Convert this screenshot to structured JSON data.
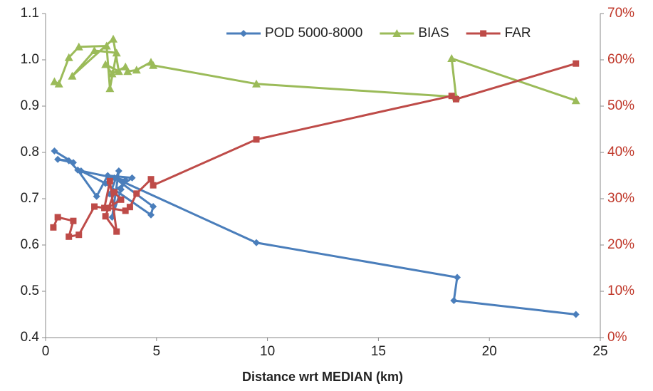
{
  "chart_data": {
    "type": "line",
    "xlabel": "Distance wrt MEDIAN (km)",
    "xlim": [
      0,
      25
    ],
    "xticks": [
      0,
      5,
      10,
      15,
      20,
      25
    ],
    "ylim": [
      0.4,
      1.1
    ],
    "yticks": [
      0.4,
      0.5,
      0.6,
      0.7,
      0.8,
      0.9,
      {
        "value": 1,
        "label": "1.0"
      },
      1.1
    ],
    "y2lim": [
      0,
      70
    ],
    "y2ticks": [
      {
        "value": 0,
        "label": "0%"
      },
      {
        "value": 10,
        "label": "10%"
      },
      {
        "value": 20,
        "label": "20%"
      },
      {
        "value": 30,
        "label": "30%"
      },
      {
        "value": 40,
        "label": "40%"
      },
      {
        "value": 50,
        "label": "50%"
      },
      {
        "value": 60,
        "label": "60%"
      },
      {
        "value": 70,
        "label": "70%"
      }
    ],
    "y2color": "#c0392b",
    "legend": "top",
    "series": [
      {
        "name": "POD 5000-8000",
        "color": "#4a7ebb",
        "marker": "diamond",
        "x": [
          0.4,
          1.25,
          0.55,
          1.05,
          1.45,
          2.3,
          2.8,
          3.9,
          2.9,
          3.3,
          3.0,
          3.4,
          3.6,
          1.6,
          2.7,
          4.75,
          4.85,
          3.1,
          9.5,
          18.55,
          18.4,
          23.9
        ],
        "values": [
          0.803,
          0.778,
          0.785,
          0.782,
          0.762,
          0.705,
          0.75,
          0.745,
          0.71,
          0.76,
          0.66,
          0.72,
          0.74,
          0.76,
          0.733,
          0.665,
          0.683,
          0.745,
          0.605,
          0.53,
          0.48,
          0.45
        ]
      },
      {
        "name": "BIAS",
        "color": "#9bbb59",
        "marker": "triangle",
        "x": [
          0.4,
          0.6,
          1.05,
          1.5,
          2.75,
          2.9,
          3.2,
          2.2,
          1.2,
          3.05,
          3.3,
          2.7,
          3.0,
          3.6,
          3.7,
          4.1,
          4.75,
          4.85,
          9.5,
          18.5,
          18.3,
          23.9
        ],
        "values": [
          0.953,
          0.948,
          1.005,
          1.028,
          1.03,
          0.938,
          1.015,
          1.02,
          0.965,
          1.045,
          0.975,
          0.99,
          0.97,
          0.985,
          0.975,
          0.978,
          0.995,
          0.988,
          0.948,
          0.92,
          1.003,
          0.912
        ]
      },
      {
        "name": "FAR",
        "color": "#be4b48",
        "marker": "square",
        "axis": "y2",
        "x": [
          0.35,
          0.55,
          1.25,
          1.05,
          1.5,
          2.2,
          2.65,
          2.9,
          3.2,
          2.7,
          3.1,
          3.4,
          2.8,
          3.6,
          3.8,
          4.1,
          4.75,
          4.85,
          9.5,
          18.3,
          18.5,
          23.9
        ],
        "values": [
          23.8,
          26,
          25.2,
          21.8,
          22.2,
          28.3,
          28,
          33.8,
          22.9,
          26.2,
          31.4,
          29.8,
          28,
          27.4,
          28.2,
          31.1,
          34.2,
          32.9,
          42.8,
          52.2,
          51.5,
          59.2
        ]
      }
    ]
  }
}
